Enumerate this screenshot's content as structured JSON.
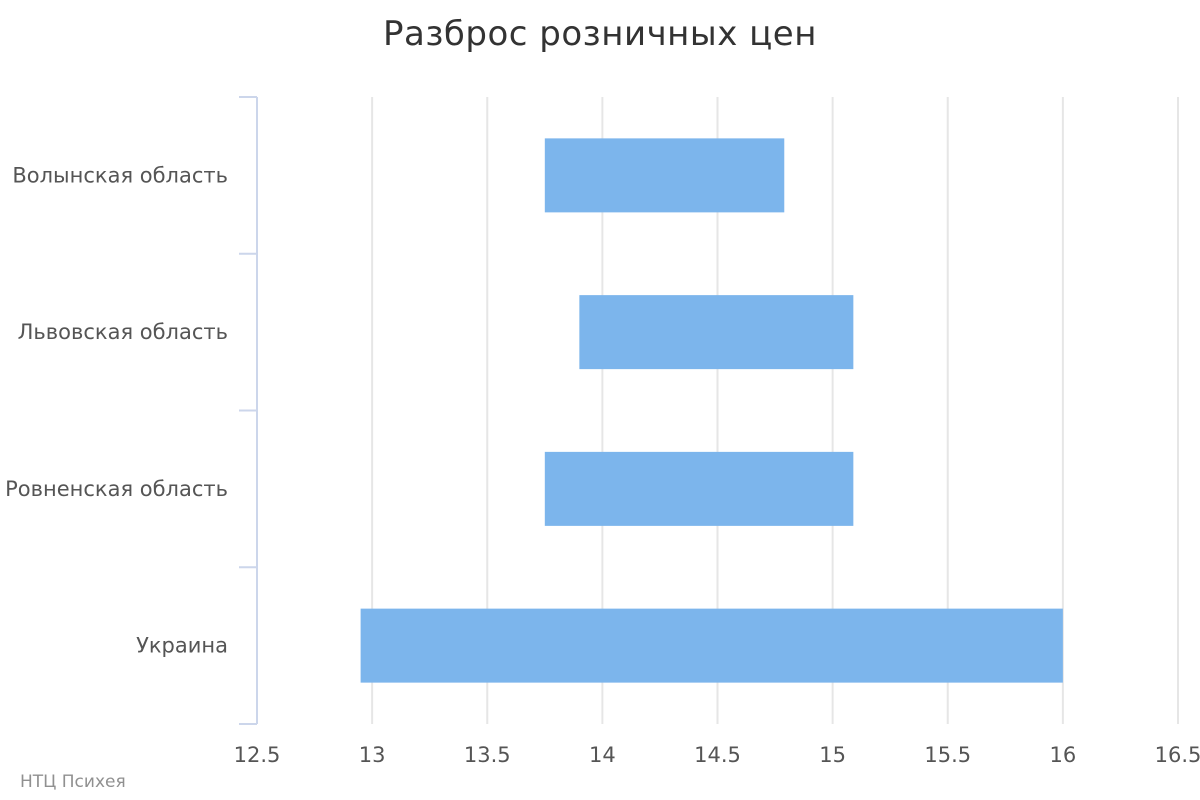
{
  "chart_data": {
    "type": "bar",
    "orientation": "horizontal-range",
    "title": "Разброс розничных цен",
    "credits": "НТЦ Психея",
    "categories": [
      "Волынская область",
      "Львовская область",
      "Ровненская область",
      "Украина"
    ],
    "series": [
      {
        "color": "#7cb5ec",
        "ranges": [
          [
            13.75,
            14.79
          ],
          [
            13.9,
            15.09
          ],
          [
            13.75,
            15.09
          ],
          [
            12.95,
            16.0
          ]
        ]
      }
    ],
    "xlim": [
      12.5,
      16.5
    ],
    "xticks": [
      12.5,
      13,
      13.5,
      14,
      14.5,
      15,
      15.5,
      16,
      16.5
    ],
    "xlabel": "",
    "ylabel": "",
    "grid": true,
    "legend": "none"
  }
}
